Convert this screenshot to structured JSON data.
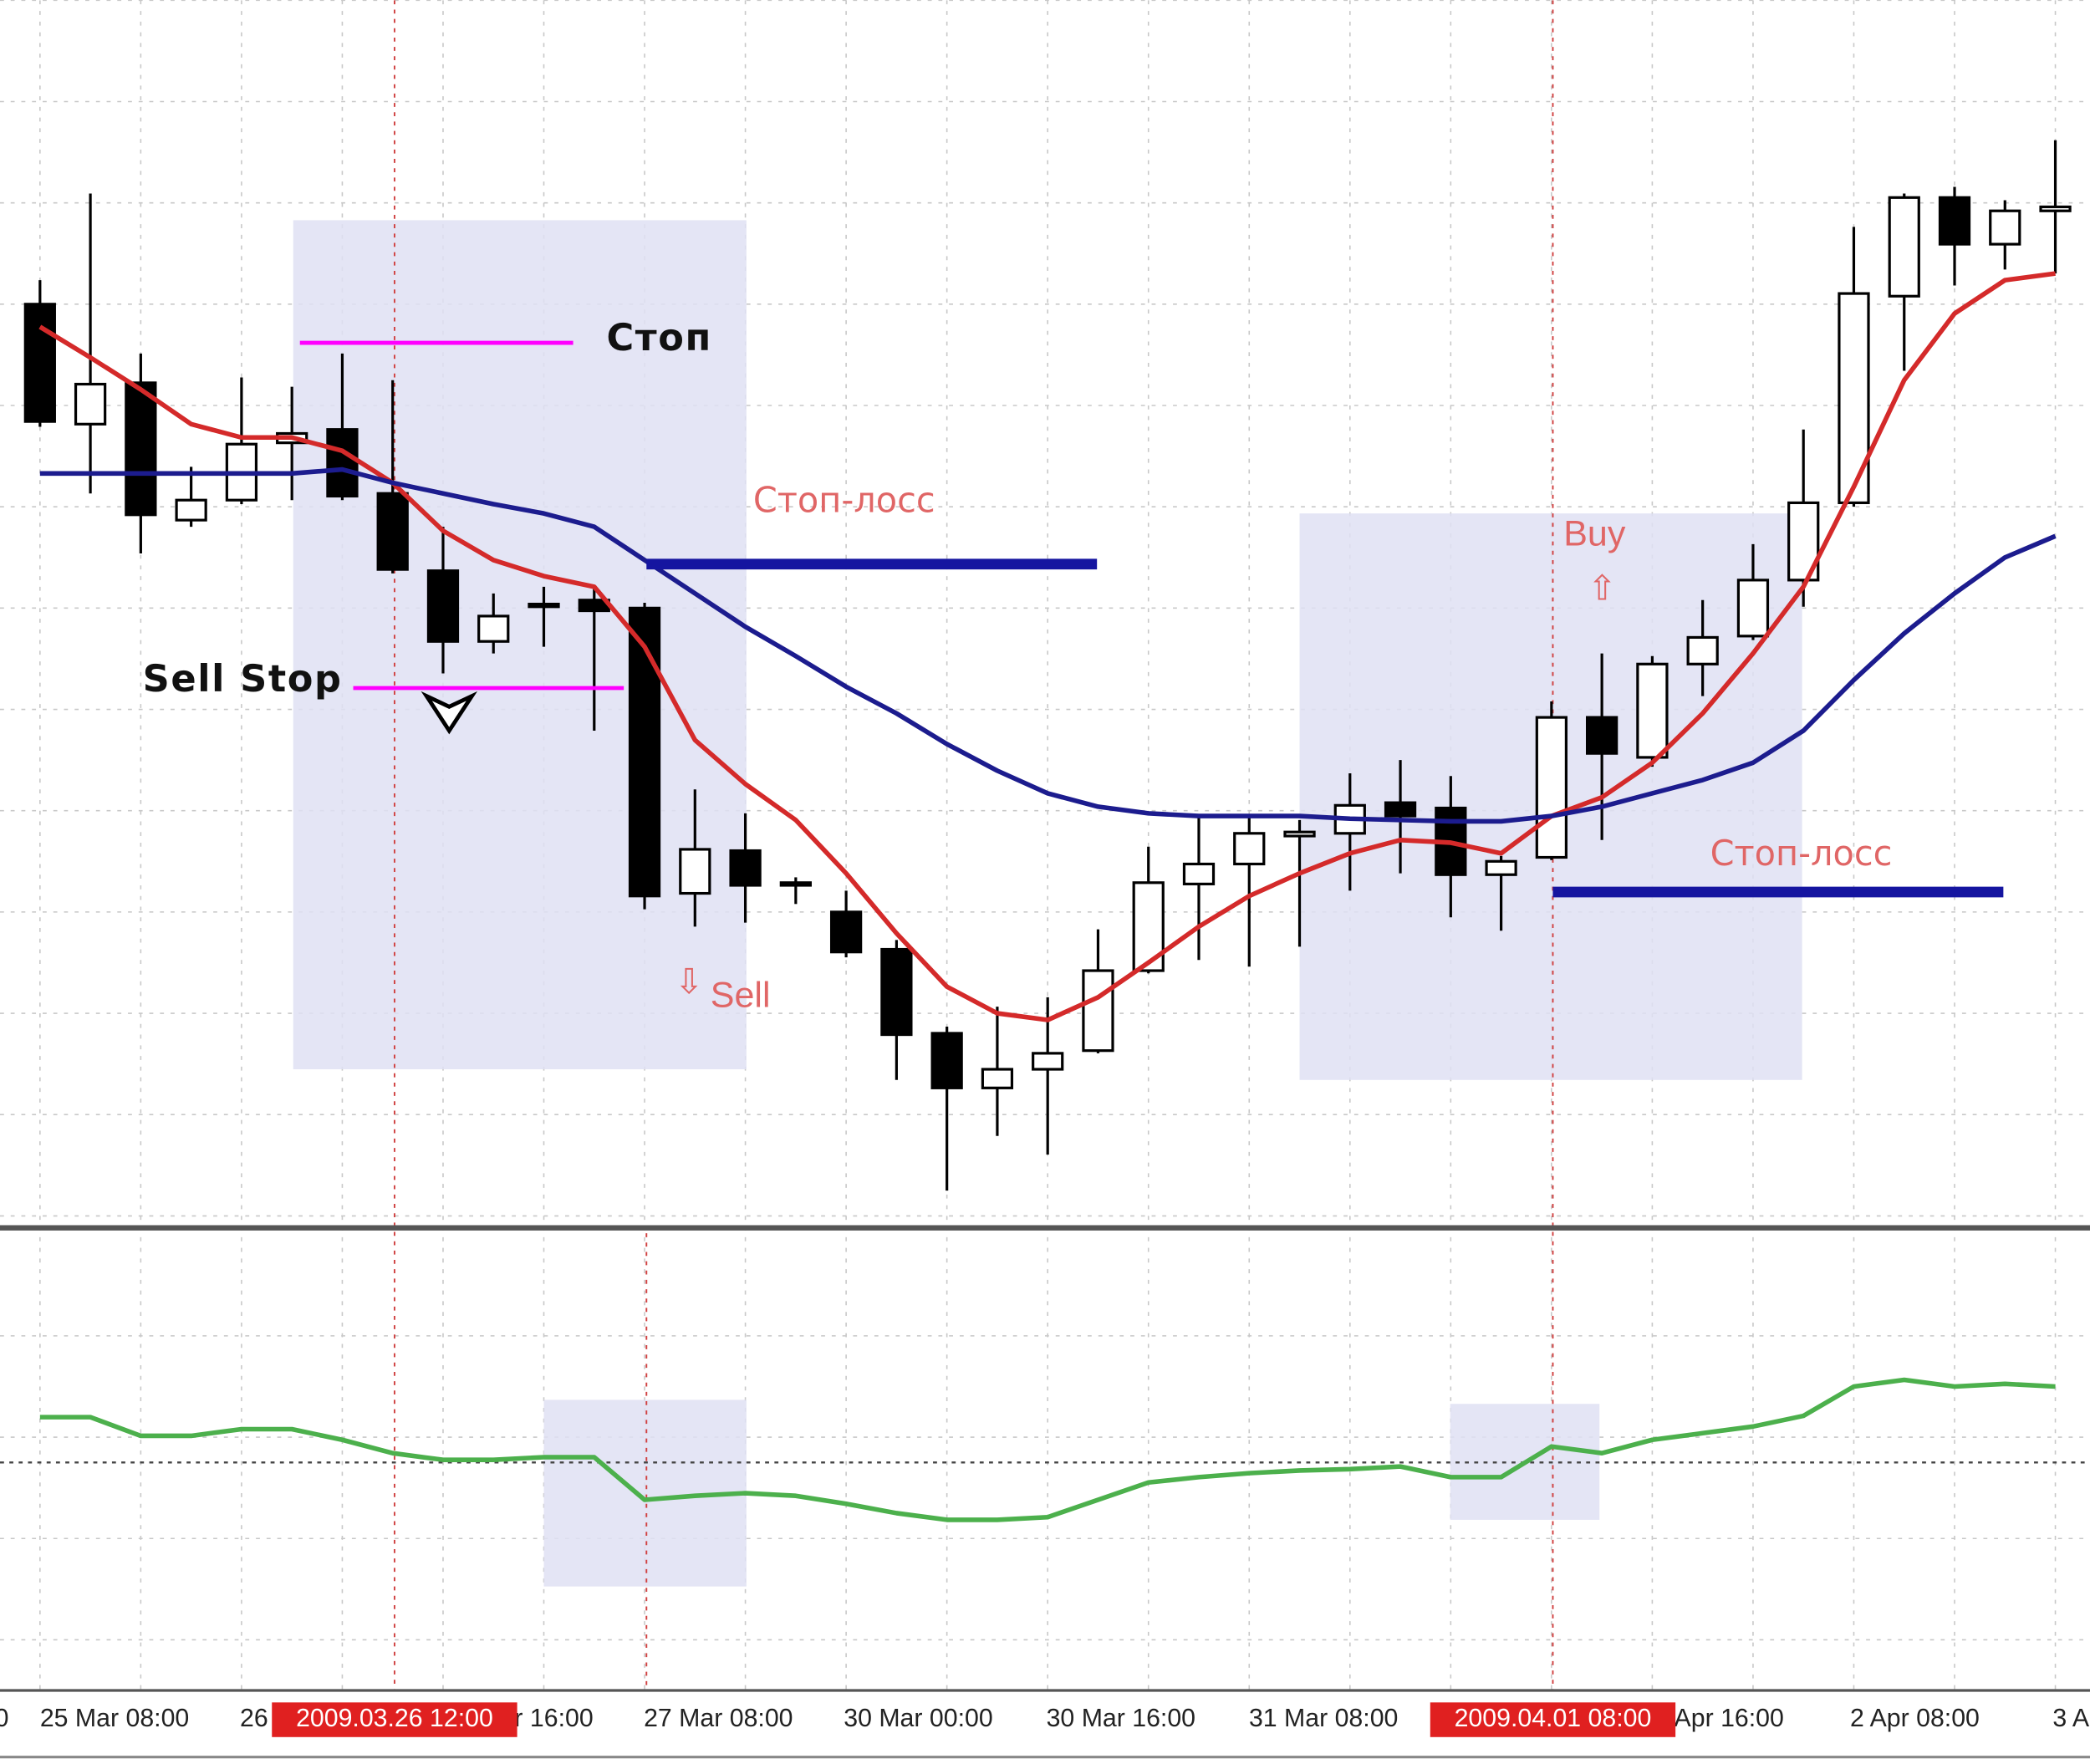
{
  "chart_data": [
    {
      "type": "candlestick",
      "open": [
        692,
        602,
        633,
        530,
        545,
        588,
        598,
        550,
        492,
        439,
        465,
        470,
        464,
        250,
        282,
        256,
        236,
        208,
        145,
        104,
        118,
        132,
        192,
        257,
        272,
        293,
        295,
        318,
        314,
        264,
        277,
        382,
        352,
        422,
        443,
        485,
        543,
        698,
        772,
        737,
        762
      ],
      "high": [
        710,
        775,
        655,
        570,
        637,
        630,
        655,
        635,
        525,
        475,
        480,
        480,
        468,
        328,
        310,
        262,
        252,
        215,
        150,
        165,
        172,
        223,
        285,
        308,
        308,
        305,
        340,
        350,
        338,
        278,
        394,
        430,
        428,
        470,
        512,
        598,
        750,
        775,
        780,
        770,
        815
      ],
      "low": [
        600,
        550,
        505,
        525,
        542,
        545,
        545,
        490,
        415,
        430,
        435,
        372,
        238,
        225,
        228,
        242,
        202,
        110,
        27,
        68,
        54,
        130,
        190,
        200,
        195,
        210,
        252,
        265,
        232,
        222,
        275,
        290,
        345,
        398,
        440,
        465,
        540,
        642,
        706,
        718,
        715
      ],
      "close": [
        604,
        632,
        534,
        545,
        587,
        595,
        548,
        493,
        439,
        458,
        467,
        462,
        248,
        283,
        256,
        258,
        206,
        144,
        104,
        118,
        130,
        192,
        258,
        272,
        295,
        296,
        316,
        308,
        264,
        274,
        382,
        355,
        422,
        442,
        485,
        543,
        700,
        772,
        737,
        762,
        765
      ],
      "ylim": [
        0,
        920
      ],
      "grid": true,
      "lines": [
        {
          "color": "#d42a2a",
          "values": [
            675,
            652,
            628,
            602,
            592,
            592,
            582,
            558,
            522,
            500,
            488,
            480,
            435,
            365,
            332,
            305,
            265,
            220,
            180,
            160,
            155,
            172,
            198,
            225,
            248,
            265,
            280,
            290,
            288,
            280,
            308,
            322,
            348,
            385,
            430,
            480,
            555,
            635,
            685,
            710,
            715
          ]
        },
        {
          "color": "#1c1c8e",
          "values": [
            565,
            565,
            565,
            565,
            565,
            565,
            568,
            558,
            550,
            542,
            535,
            525,
            500,
            475,
            450,
            428,
            405,
            385,
            362,
            342,
            325,
            315,
            310,
            308,
            308,
            308,
            306,
            305,
            304,
            304,
            308,
            315,
            325,
            335,
            348,
            372,
            410,
            445,
            475,
            502,
            518
          ]
        }
      ],
      "levels": [
        {
          "value": 663,
          "color": "#ff00ff",
          "label": "Стоп"
        },
        {
          "value": 404,
          "color": "#ff00ff",
          "label": "Sell Stop"
        },
        {
          "value": 497,
          "color": "#1515a0",
          "label": "Стоп-лосс"
        },
        {
          "value": 251,
          "color": "#1515a0",
          "label": "Стоп-лосс"
        }
      ],
      "signals": [
        {
          "label": "Sell",
          "arrow": "⇩"
        },
        {
          "label": "Buy",
          "arrow": "⇧"
        }
      ],
      "time_labels": [
        "0",
        "25 Mar 08:00",
        "26",
        "r 16:00",
        "27 Mar 08:00",
        "30 Mar 00:00",
        "30 Mar 16:00",
        "31 Mar 08:00",
        "Apr 16:00",
        "2 Apr 08:00",
        "3 A"
      ],
      "cursor_labels": [
        "2009.03.26 12:00",
        "2009.04.01 08:00"
      ]
    },
    {
      "type": "line",
      "color": "#4cb04c",
      "values": [
        202,
        202,
        188,
        188,
        193,
        193,
        185,
        175,
        170,
        170,
        172,
        172,
        140,
        143,
        145,
        143,
        137,
        130,
        125,
        125,
        127,
        140,
        153,
        157,
        160,
        162,
        163,
        165,
        157,
        157,
        180,
        175,
        185,
        190,
        195,
        203,
        225,
        230,
        225,
        227,
        225
      ],
      "ylim": [
        0,
        340
      ],
      "level": 168
    }
  ]
}
